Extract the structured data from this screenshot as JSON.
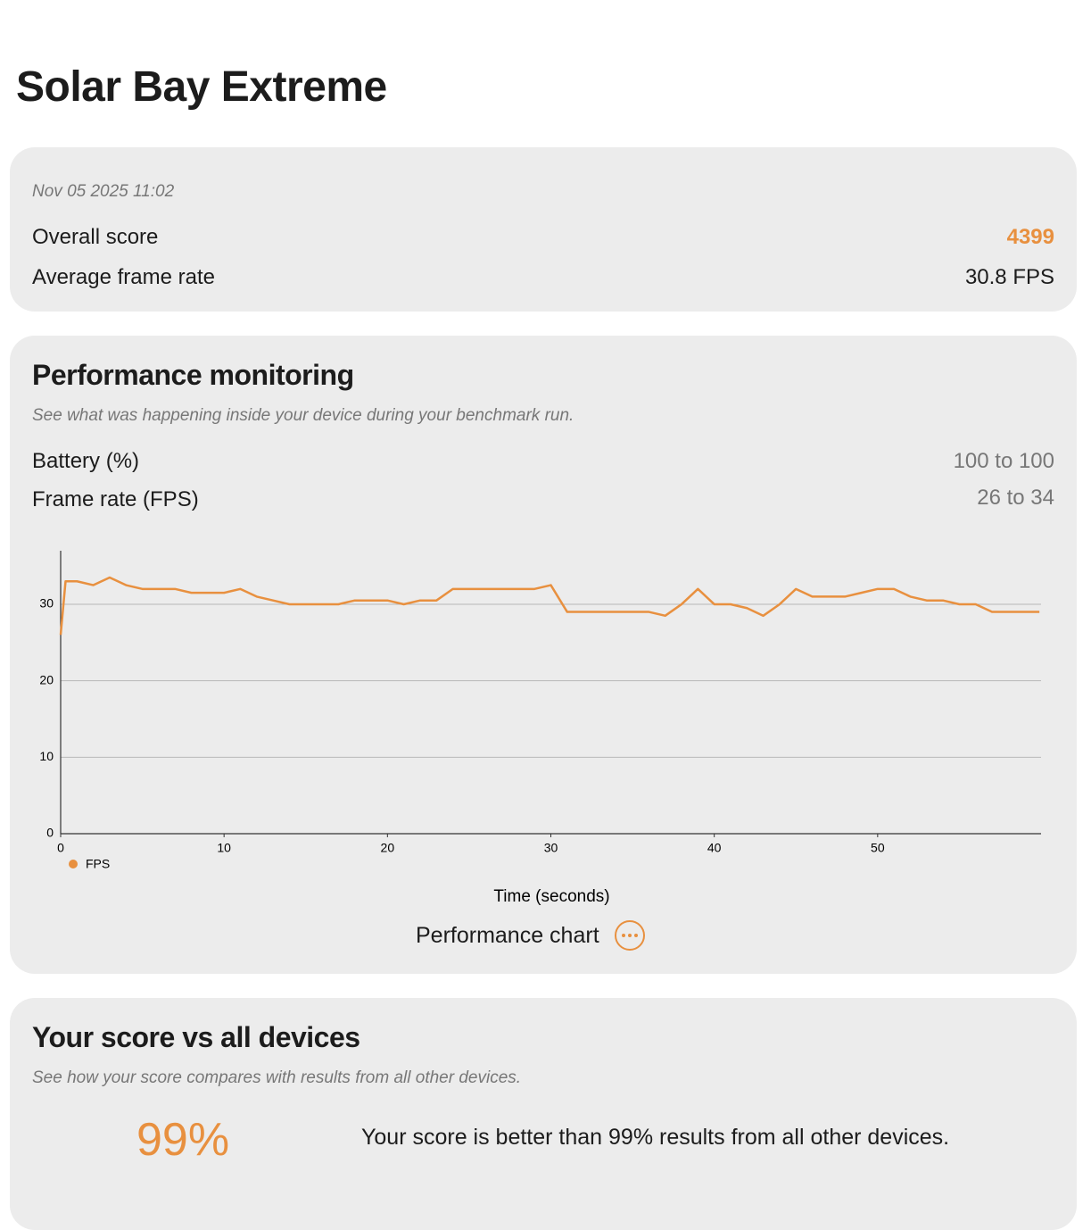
{
  "header": {
    "title": "Solar Bay Extreme"
  },
  "summary": {
    "date": "Nov 05 2025 11:02",
    "rows": [
      {
        "label": "Overall score",
        "value": "4399"
      },
      {
        "label": "Average frame rate",
        "value": "30.8 FPS"
      }
    ]
  },
  "monitoring": {
    "title": "Performance monitoring",
    "subtitle": "See what was happening inside your device during your benchmark run.",
    "rows": [
      {
        "label": "Battery (%)",
        "value": "100 to 100"
      },
      {
        "label": "Frame rate (FPS)",
        "value": "26 to 34"
      }
    ],
    "button": "Performance chart"
  },
  "chart_data": {
    "type": "line",
    "x_label": "Time (seconds)",
    "x": [
      0,
      0.3,
      1,
      2,
      3,
      4,
      5,
      6,
      7,
      8,
      9,
      10,
      11,
      12,
      13,
      14,
      15,
      16,
      17,
      18,
      19,
      20,
      21,
      22,
      23,
      24,
      25,
      26,
      27,
      28,
      29,
      30,
      31,
      32,
      33,
      34,
      35,
      36,
      37,
      38,
      39,
      40,
      41,
      42,
      43,
      44,
      45,
      46,
      47,
      48,
      49,
      50,
      51,
      52,
      53,
      54,
      55,
      56,
      57,
      58,
      59,
      59.9
    ],
    "series": [
      {
        "name": "FPS",
        "color": "#e8903f",
        "values": [
          26,
          33,
          33,
          32.5,
          33.5,
          32.5,
          32,
          32,
          32,
          31.5,
          31.5,
          31.5,
          32,
          31,
          30.5,
          30,
          30,
          30,
          30,
          30.5,
          30.5,
          30.5,
          30,
          30.5,
          30.5,
          32,
          32,
          32,
          32,
          32,
          32,
          32.5,
          29,
          29,
          29,
          29,
          29,
          29,
          28.5,
          30,
          32,
          30,
          30,
          29.5,
          28.5,
          30,
          32,
          31,
          31,
          31,
          31.5,
          32,
          32,
          31,
          30.5,
          30.5,
          30,
          30,
          29,
          29,
          29,
          29
        ]
      }
    ],
    "xlim": [
      0,
      60
    ],
    "ylim": [
      0,
      37
    ],
    "xticks": [
      0,
      10,
      20,
      30,
      40,
      50
    ],
    "yticks": [
      0,
      10,
      20,
      30
    ],
    "grid": true
  },
  "comparison": {
    "title": "Your score vs all devices",
    "subtitle": "See how your score compares with results from all other devices.",
    "percentile": "99%",
    "text": "Your score is better than 99% results from all other devices."
  }
}
